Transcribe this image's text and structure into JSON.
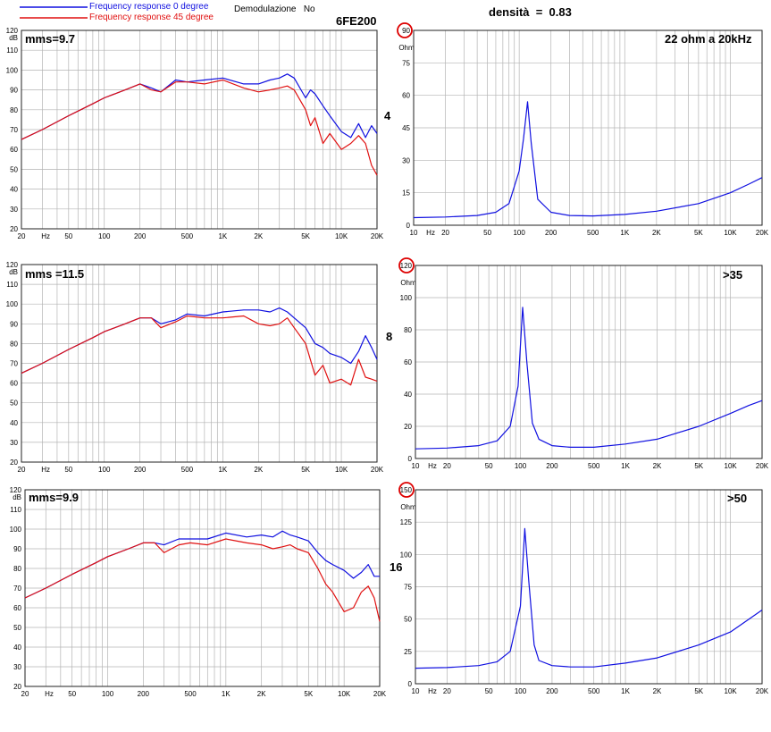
{
  "header": {
    "legend_blue": "Frequency response 0 degree",
    "legend_red": "Frequency response 45 degree",
    "demod": "Demodulazione   No",
    "model": "6FE200",
    "density": "densità  =  0.83"
  },
  "colors": {
    "blue": "#1010e0",
    "red": "#e01010",
    "circle": "#dd0000",
    "grid": "#b4b4b4"
  },
  "rows": [
    {
      "impedance_label": "4",
      "spl": {
        "annotation": "mms=9.7",
        "unit": "dB",
        "ytick_labels": [
          "120",
          "110",
          "100",
          "90",
          "80",
          "70",
          "60",
          "50",
          "40",
          "30",
          "20"
        ],
        "xtick_labels": [
          "20",
          "Hz",
          "50",
          "100",
          "200",
          "500",
          "1K",
          "2K",
          "5K",
          "10K",
          "20K"
        ]
      },
      "imp": {
        "annotation": "22 ohm a 20kHz",
        "unit": "Ohm",
        "ytick_labels": [
          "90",
          "75",
          "60",
          "45",
          "30",
          "15",
          "0"
        ],
        "circled_max": "90",
        "xtick_labels": [
          "10",
          "Hz",
          "20",
          "50",
          "100",
          "200",
          "500",
          "1K",
          "2K",
          "5K",
          "10K",
          "20K"
        ]
      }
    },
    {
      "impedance_label": "8",
      "spl": {
        "annotation": "mms =11.5",
        "unit": "dB",
        "ytick_labels": [
          "120",
          "110",
          "100",
          "90",
          "80",
          "70",
          "60",
          "50",
          "40",
          "30",
          "20"
        ],
        "xtick_labels": [
          "20",
          "Hz",
          "50",
          "100",
          "200",
          "500",
          "1K",
          "2K",
          "5K",
          "10K",
          "20K"
        ]
      },
      "imp": {
        "annotation": ">35",
        "unit": "Ohm",
        "ytick_labels": [
          "120",
          "100",
          "80",
          "60",
          "40",
          "20",
          "0"
        ],
        "circled_max": "120",
        "xtick_labels": [
          "10",
          "Hz",
          "20",
          "50",
          "100",
          "200",
          "500",
          "1K",
          "2K",
          "5K",
          "10K",
          "20K"
        ]
      }
    },
    {
      "impedance_label": "16",
      "spl": {
        "annotation": "mms=9.9",
        "unit": "dB",
        "ytick_labels": [
          "120",
          "110",
          "100",
          "90",
          "80",
          "70",
          "60",
          "50",
          "40",
          "30",
          "20"
        ],
        "xtick_labels": [
          "20",
          "Hz",
          "50",
          "100",
          "200",
          "500",
          "1K",
          "2K",
          "5K",
          "10K",
          "20K"
        ]
      },
      "imp": {
        "annotation": ">50",
        "unit": "Ohm",
        "ytick_labels": [
          "150",
          "125",
          "100",
          "75",
          "50",
          "25",
          "0"
        ],
        "circled_max": "150",
        "xtick_labels": [
          "10",
          "Hz",
          "20",
          "50",
          "100",
          "200",
          "500",
          "1K",
          "2K",
          "5K",
          "10K",
          "20K"
        ]
      }
    }
  ],
  "chart_data": [
    {
      "type": "line",
      "xscale": "log",
      "xlim": [
        20,
        20000
      ],
      "ylim": [
        20,
        120
      ],
      "grid": true,
      "series": [
        {
          "name": "Frequency response 0 degree",
          "color": "#1010e0",
          "x": [
            20,
            30,
            50,
            80,
            100,
            150,
            200,
            250,
            300,
            400,
            500,
            700,
            1000,
            1500,
            2000,
            2500,
            3000,
            3500,
            4000,
            5000,
            5500,
            6000,
            7000,
            8000,
            10000,
            12000,
            14000,
            16000,
            18000,
            20000
          ],
          "y": [
            65,
            70,
            77,
            83,
            86,
            90,
            93,
            91,
            89,
            95,
            94,
            95,
            96,
            93,
            93,
            95,
            96,
            98,
            96,
            86,
            90,
            88,
            82,
            77,
            69,
            66,
            73,
            66,
            72,
            68
          ]
        },
        {
          "name": "Frequency response 45 degree",
          "color": "#e01010",
          "x": [
            20,
            30,
            50,
            80,
            100,
            150,
            200,
            250,
            300,
            400,
            500,
            700,
            1000,
            1500,
            2000,
            2500,
            3000,
            3500,
            4000,
            5000,
            5500,
            6000,
            7000,
            8000,
            10000,
            12000,
            14000,
            16000,
            18000,
            20000
          ],
          "y": [
            65,
            70,
            77,
            83,
            86,
            90,
            93,
            90,
            89,
            94,
            94,
            93,
            95,
            91,
            89,
            90,
            91,
            92,
            90,
            80,
            72,
            76,
            63,
            68,
            60,
            63,
            67,
            63,
            52,
            47
          ]
        }
      ]
    },
    {
      "type": "line",
      "xscale": "log",
      "xlim": [
        10,
        20000
      ],
      "ylim": [
        0,
        90
      ],
      "grid": true,
      "series": [
        {
          "color": "#1010e0",
          "x": [
            10,
            20,
            40,
            60,
            80,
            100,
            110,
            120,
            130,
            150,
            200,
            300,
            500,
            1000,
            2000,
            5000,
            10000,
            15000,
            20000
          ],
          "y": [
            3.5,
            3.8,
            4.5,
            6,
            10,
            25,
            40,
            57,
            38,
            12,
            6,
            4.5,
            4.3,
            5,
            6.5,
            10,
            15,
            19,
            22
          ]
        }
      ]
    },
    {
      "type": "line",
      "xscale": "log",
      "xlim": [
        20,
        20000
      ],
      "ylim": [
        20,
        120
      ],
      "grid": true,
      "series": [
        {
          "name": "Frequency response 0 degree",
          "color": "#1010e0",
          "x": [
            20,
            30,
            50,
            80,
            100,
            150,
            200,
            250,
            300,
            400,
            500,
            700,
            1000,
            1500,
            2000,
            2500,
            3000,
            3500,
            4000,
            5000,
            6000,
            7000,
            8000,
            10000,
            12000,
            14000,
            16000,
            18000,
            20000
          ],
          "y": [
            65,
            70,
            77,
            83,
            86,
            90,
            93,
            93,
            90,
            92,
            95,
            94,
            96,
            97,
            97,
            96,
            98,
            96,
            93,
            88,
            80,
            78,
            75,
            73,
            70,
            76,
            84,
            78,
            72
          ]
        },
        {
          "name": "Frequency response 45 degree",
          "color": "#e01010",
          "x": [
            20,
            30,
            50,
            80,
            100,
            150,
            200,
            250,
            300,
            400,
            500,
            700,
            1000,
            1500,
            2000,
            2500,
            3000,
            3500,
            4000,
            5000,
            6000,
            7000,
            8000,
            10000,
            12000,
            14000,
            16000,
            18000,
            20000
          ],
          "y": [
            65,
            70,
            77,
            83,
            86,
            90,
            93,
            93,
            88,
            91,
            94,
            93,
            93,
            94,
            90,
            89,
            90,
            93,
            88,
            80,
            64,
            69,
            60,
            62,
            59,
            72,
            63,
            62,
            61
          ]
        }
      ]
    },
    {
      "type": "line",
      "xscale": "log",
      "xlim": [
        10,
        20000
      ],
      "ylim": [
        0,
        120
      ],
      "grid": true,
      "series": [
        {
          "color": "#1010e0",
          "x": [
            10,
            20,
            40,
            60,
            80,
            95,
            105,
            115,
            130,
            150,
            200,
            300,
            500,
            1000,
            2000,
            5000,
            10000,
            15000,
            20000
          ],
          "y": [
            6,
            6.5,
            8,
            11,
            20,
            45,
            94,
            60,
            22,
            12,
            8,
            7,
            7,
            9,
            12,
            20,
            28,
            33,
            36
          ]
        }
      ]
    },
    {
      "type": "line",
      "xscale": "log",
      "xlim": [
        20,
        20000
      ],
      "ylim": [
        20,
        120
      ],
      "grid": true,
      "series": [
        {
          "name": "Frequency response 0 degree",
          "color": "#1010e0",
          "x": [
            20,
            30,
            50,
            80,
            100,
            150,
            200,
            250,
            300,
            400,
            500,
            700,
            1000,
            1500,
            2000,
            2500,
            3000,
            3500,
            4000,
            5000,
            6000,
            7000,
            8000,
            10000,
            12000,
            14000,
            16000,
            18000,
            20000
          ],
          "y": [
            65,
            70,
            77,
            83,
            86,
            90,
            93,
            93,
            92,
            95,
            95,
            95,
            98,
            96,
            97,
            96,
            99,
            97,
            96,
            94,
            88,
            84,
            82,
            79,
            75,
            78,
            82,
            76,
            76
          ]
        },
        {
          "name": "Frequency response 45 degree",
          "color": "#e01010",
          "x": [
            20,
            30,
            50,
            80,
            100,
            150,
            200,
            250,
            300,
            400,
            500,
            700,
            1000,
            1500,
            2000,
            2500,
            3000,
            3500,
            4000,
            5000,
            6000,
            7000,
            8000,
            10000,
            12000,
            14000,
            16000,
            18000,
            20000
          ],
          "y": [
            65,
            70,
            77,
            83,
            86,
            90,
            93,
            93,
            88,
            92,
            93,
            92,
            95,
            93,
            92,
            90,
            91,
            92,
            90,
            88,
            80,
            72,
            68,
            58,
            60,
            68,
            71,
            65,
            53
          ]
        }
      ]
    },
    {
      "type": "line",
      "xscale": "log",
      "xlim": [
        10,
        20000
      ],
      "ylim": [
        0,
        150
      ],
      "grid": true,
      "series": [
        {
          "color": "#1010e0",
          "x": [
            10,
            20,
            40,
            60,
            80,
            100,
            110,
            120,
            135,
            150,
            200,
            300,
            500,
            1000,
            2000,
            5000,
            10000,
            15000,
            20000
          ],
          "y": [
            12,
            12.5,
            14,
            17,
            25,
            60,
            120,
            80,
            30,
            18,
            14,
            13,
            13,
            16,
            20,
            30,
            40,
            50,
            57
          ]
        }
      ]
    }
  ]
}
